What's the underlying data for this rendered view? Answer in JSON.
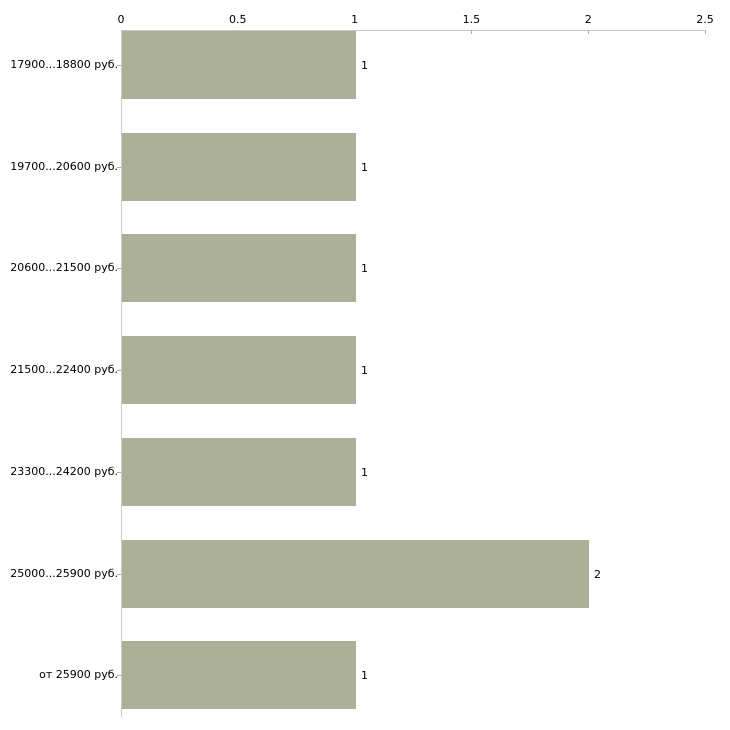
{
  "chart_data": {
    "type": "bar",
    "orientation": "horizontal",
    "title": "",
    "xlabel": "",
    "ylabel": "",
    "categories": [
      "17900...18800 руб.",
      "19700...20600 руб.",
      "20600...21500 руб.",
      "21500...22400 руб.",
      "23300...24200 руб.",
      "25000...25900 руб.",
      "от 25900 руб."
    ],
    "values": [
      1,
      1,
      1,
      1,
      1,
      2,
      1
    ],
    "bar_labels": [
      "1",
      "1",
      "1",
      "1",
      "1",
      "2",
      "1"
    ],
    "xlim": [
      0,
      2.5
    ],
    "xticks": [
      0,
      0.5,
      1,
      1.5,
      2,
      2.5
    ],
    "xtick_labels": [
      "0",
      "0.5",
      "1",
      "1.5",
      "2",
      "2.5"
    ],
    "grid": false,
    "legend": "none",
    "axis_position": "top",
    "colors": {
      "bar_fill": "#acb098",
      "axis_line": "#c9c9c9",
      "tick_mark": "#b5b38f",
      "text": "#000000",
      "background": "#ffffff"
    }
  }
}
